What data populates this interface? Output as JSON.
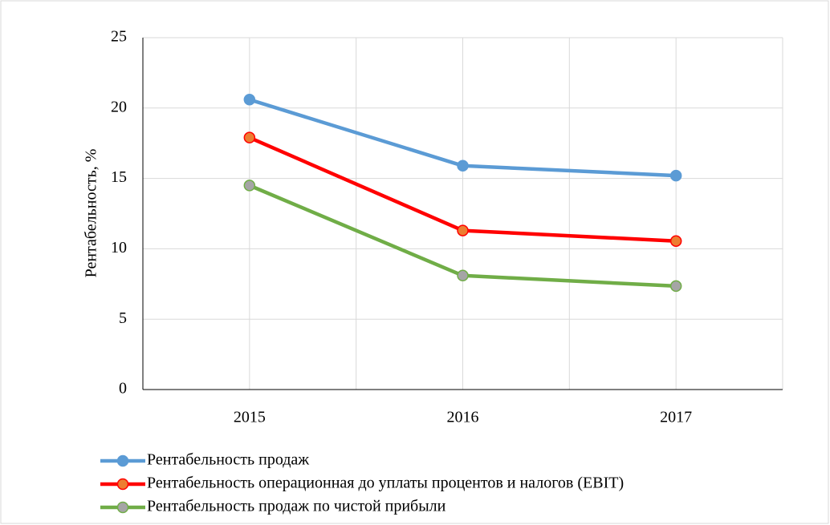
{
  "chart_data": {
    "type": "line",
    "y_label": "Рентабельность, %",
    "categories": [
      "2015",
      "2016",
      "2017"
    ],
    "series": [
      {
        "name": "Рентабельность продаж",
        "color": "#5b9bd5",
        "marker_fill": "#5b9bd5",
        "values": [
          20.6,
          15.9,
          15.2
        ]
      },
      {
        "name": "Рентабельность операционная до уплаты процентов и налогов (EBIT)",
        "color": "#ff0000",
        "marker_fill": "#ed7d31",
        "values": [
          17.9,
          11.3,
          10.55
        ]
      },
      {
        "name": "Рентабельность продаж по чистой прибыли",
        "color": "#70ad47",
        "marker_fill": "#a5a5a5",
        "values": [
          14.5,
          8.1,
          7.35
        ]
      }
    ],
    "ylim": [
      0,
      25
    ],
    "yticks": [
      0,
      5,
      10,
      15,
      20,
      25
    ],
    "grid": true,
    "legend": "bottom"
  }
}
